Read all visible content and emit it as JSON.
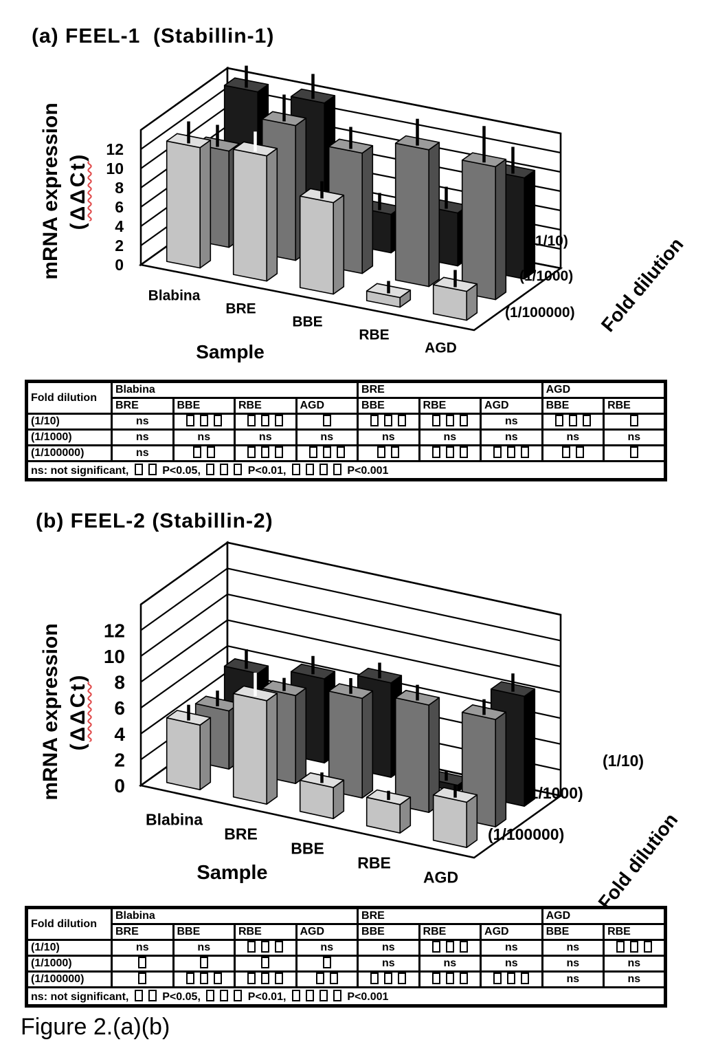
{
  "page": {
    "panel_a_title": "(a) FEEL-1  (Stabillin-1)",
    "panel_b_title": "(b) FEEL-2 (Stabillin-2)",
    "caption": "Figure 2.(a)(b)"
  },
  "chart_data": [
    {
      "panel": "a",
      "type": "bar",
      "projection": "3d-column",
      "title": "FEEL-1 (Stabillin-1)",
      "value_axis": {
        "title": "mRNA expression",
        "title_sub": "(ΔΔCt)",
        "ticks": [
          0,
          2,
          4,
          6,
          8,
          10,
          12
        ],
        "max": 14
      },
      "category_axis": {
        "title": "Sample",
        "categories": [
          "Blabina",
          "BRE",
          "BBE",
          "RBE",
          "AGD"
        ]
      },
      "depth_axis": {
        "title": "Fold dilution",
        "rows_front_to_back": [
          "(1/100000)",
          "(1/1000)",
          "(1/10)"
        ]
      },
      "grid": "on",
      "series": [
        {
          "name": "(1/10)",
          "depth": "back",
          "color": "#1b1b1b",
          "values": [
            14,
            14.2,
            4,
            5.5,
            10.5
          ],
          "errors": [
            2,
            2.3,
            1.5,
            2,
            2.5
          ]
        },
        {
          "name": "(1/1000)",
          "depth": "middle",
          "color": "#747474",
          "values": [
            10,
            14,
            12.5,
            14.2,
            13.8
          ],
          "errors": [
            2,
            2.5,
            2,
            2.5,
            3.5
          ]
        },
        {
          "name": "(1/100000)",
          "depth": "front",
          "color": "#c4c4c4",
          "values": [
            12.5,
            13,
            9.5,
            1,
            3
          ],
          "errors": [
            2,
            1.8,
            1.5,
            1,
            1.5
          ],
          "white_error_categories": [
            "BRE"
          ]
        }
      ]
    },
    {
      "panel": "b",
      "type": "bar",
      "projection": "3d-column",
      "title": "FEEL-2 (Stabillin-2)",
      "value_axis": {
        "title": "mRNA expression",
        "title_sub": "(ΔΔCt)",
        "ticks": [
          0,
          2,
          4,
          6,
          8,
          10,
          12
        ],
        "max": 14
      },
      "category_axis": {
        "title": "Sample",
        "categories": [
          "Blabina",
          "BRE",
          "BBE",
          "RBE",
          "AGD"
        ]
      },
      "depth_axis": {
        "title": "Fold dilution",
        "rows_front_to_back": [
          "(1/100000)",
          "(1/1000)",
          "(1/10)"
        ]
      },
      "grid": "on",
      "series": [
        {
          "name": "(1/10)",
          "depth": "back",
          "color": "#1b1b1b",
          "values": [
            5.8,
            6.5,
            7.3,
            0.5,
            8.5
          ],
          "errors": [
            1.3,
            1.2,
            1,
            0.5,
            1.2
          ]
        },
        {
          "name": "(1/1000)",
          "depth": "middle",
          "color": "#747474",
          "values": [
            4.5,
            6.8,
            7.7,
            8.3,
            8.3
          ],
          "errors": [
            1,
            0.8,
            1,
            1,
            1
          ]
        },
        {
          "name": "(1/100000)",
          "depth": "front",
          "color": "#c4c4c4",
          "values": [
            5,
            8,
            2.4,
            2.2,
            3.5
          ],
          "errors": [
            1,
            1.6,
            0.6,
            0.5,
            0.8
          ],
          "white_error_categories": [
            "BRE"
          ]
        }
      ]
    }
  ],
  "tables": [
    {
      "panel": "a",
      "corner_header": "Fold dilution",
      "groups": [
        {
          "label": "Blabina",
          "columns": [
            "BRE",
            "BBE",
            "RBE",
            "AGD"
          ]
        },
        {
          "label": "BRE",
          "columns": [
            "BBE",
            "RBE",
            "AGD"
          ]
        },
        {
          "label": "AGD",
          "columns": [
            "BBE",
            "RBE"
          ]
        }
      ],
      "rows": [
        {
          "label": "(1/10)",
          "cells": [
            "ns",
            "▯▯▯",
            "▯▯▯",
            "▯",
            "▯▯▯",
            "▯▯▯",
            "ns",
            "▯▯▯",
            "▯"
          ]
        },
        {
          "label": "(1/1000)",
          "cells": [
            "ns",
            "ns",
            "ns",
            "ns",
            "ns",
            "ns",
            "ns",
            "ns",
            "ns"
          ]
        },
        {
          "label": "(1/100000)",
          "cells": [
            "ns",
            "▯▯",
            "▯▯▯",
            "▯▯▯",
            "▯▯",
            "▯▯▯",
            "▯▯▯",
            "▯▯",
            "▯"
          ]
        }
      ],
      "footnote": "ns: not significant, ▯▯ P<0.05, ▯▯▯ P<0.01, ▯▯▯▯ P<0.001"
    },
    {
      "panel": "b",
      "corner_header": "Fold dilution",
      "groups": [
        {
          "label": "Blabina",
          "columns": [
            "BRE",
            "BBE",
            "RBE",
            "AGD"
          ]
        },
        {
          "label": "BRE",
          "columns": [
            "BBE",
            "RBE",
            "AGD"
          ]
        },
        {
          "label": "AGD",
          "columns": [
            "BBE",
            "RBE"
          ]
        }
      ],
      "rows": [
        {
          "label": "(1/10)",
          "cells": [
            "ns",
            "ns",
            "▯▯▯",
            "ns",
            "ns",
            "▯▯▯",
            "ns",
            "ns",
            "▯▯▯"
          ]
        },
        {
          "label": "(1/1000)",
          "cells": [
            "▯",
            "▯",
            "▯",
            "▯",
            "ns",
            "ns",
            "ns",
            "ns",
            "ns"
          ]
        },
        {
          "label": "(1/100000)",
          "cells": [
            "▯",
            "▯▯▯",
            "▯▯▯",
            "▯▯",
            "▯▯▯",
            "▯▯▯",
            "▯▯▯",
            "ns",
            "ns"
          ]
        }
      ],
      "footnote": "ns: not significant, ▯▯ P<0.05, ▯▯▯ P<0.01, ▯▯▯▯ P<0.001"
    }
  ],
  "colors": {
    "back_row": "#1b1b1b",
    "middle_row": "#747474",
    "front_row": "#c4c4c4",
    "spellcheck_underline": "#e04a4a"
  }
}
